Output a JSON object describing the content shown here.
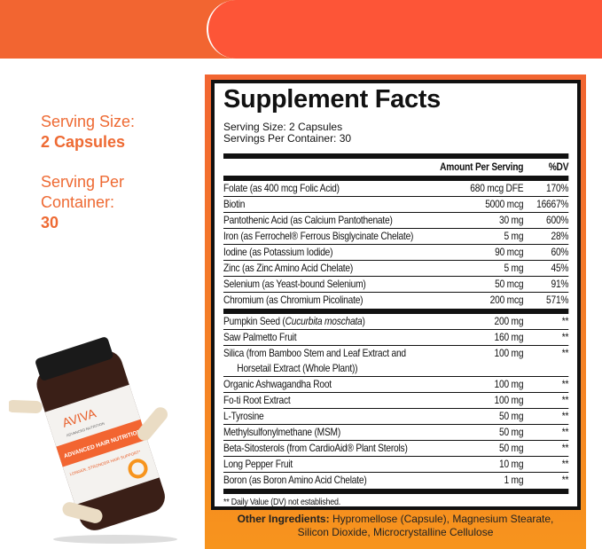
{
  "colors": {
    "left_band": "#f26531",
    "right_band": "#fd5537",
    "accent_text": "#ee6a33"
  },
  "left": {
    "serving_size_label": "Serving Size:",
    "serving_size_value": "2 Capsules",
    "servings_label_1": "Serving Per",
    "servings_label_2": "Container:",
    "servings_value": "30"
  },
  "facts": {
    "title": "Supplement Facts",
    "serving_size": "Serving Size: 2 Capsules",
    "servings_per_container": "Servings Per Container: 30",
    "header": {
      "amount": "Amount Per Serving",
      "dv": "%DV"
    },
    "vitamins": [
      {
        "name": "Folate (as 400 mcg Folic Acid)",
        "amount": "680 mcg DFE",
        "dv": "170%"
      },
      {
        "name": "Biotin",
        "amount": "5000 mcg",
        "dv": "16667%"
      },
      {
        "name": "Pantothenic Acid (as Calcium Pantothenate)",
        "amount": "30 mg",
        "dv": "600%"
      },
      {
        "name": "Iron (as Ferrochel® Ferrous Bisglycinate Chelate)",
        "amount": "5 mg",
        "dv": "28%"
      },
      {
        "name": "Iodine (as Potassium Iodide)",
        "amount": "90 mcg",
        "dv": "60%"
      },
      {
        "name": "Zinc (as Zinc Amino Acid Chelate)",
        "amount": "5 mg",
        "dv": "45%"
      },
      {
        "name": "Selenium (as Yeast-bound Selenium)",
        "amount": "50 mcg",
        "dv": "91%"
      },
      {
        "name": "Chromium (as Chromium Picolinate)",
        "amount": "200 mcg",
        "dv": "571%"
      }
    ],
    "others": [
      {
        "name": "Pumpkin Seed (",
        "name_italic": "Cucurbita moschata",
        "name_end": ")",
        "amount": "200 mg",
        "dv": "**"
      },
      {
        "name": "Saw Palmetto Fruit",
        "amount": "160 mg",
        "dv": "**"
      },
      {
        "name": "Silica (from Bamboo Stem and Leaf Extract and",
        "name_line2": "Horsetail Extract (Whole Plant))",
        "amount": "100 mg",
        "dv": "**"
      },
      {
        "name": "Organic Ashwagandha Root",
        "amount": "100 mg",
        "dv": "**"
      },
      {
        "name": "Fo-ti Root Extract",
        "amount": "100 mg",
        "dv": "**"
      },
      {
        "name": "L-Tyrosine",
        "amount": "50 mg",
        "dv": "**"
      },
      {
        "name": "Methylsulfonylmethane (MSM)",
        "amount": "50 mg",
        "dv": "**"
      },
      {
        "name": "Beta-Sitosterols (from CardioAid® Plant Sterols)",
        "amount": "50 mg",
        "dv": "**"
      },
      {
        "name": "Long Pepper Fruit",
        "amount": "10 mg",
        "dv": "**"
      },
      {
        "name": "Boron (as Boron Amino Acid Chelate)",
        "amount": "1 mg",
        "dv": "**"
      }
    ],
    "footnote": "** Daily Value (DV) not established.",
    "other_ingredients_label": "Other Ingredients:",
    "other_ingredients_1": " Hypromellose (Capsule), Magnesium Stearate,",
    "other_ingredients_2": "Silicon Dioxide, Microcrystalline Cellulose"
  },
  "bottle": {
    "brand": "AVIVA",
    "brand_sub": "ADVANCED NUTRITION",
    "product": "ADVANCED HAIR NUTRITION",
    "tagline": "LONGER, STRONGER HAIR SUPPORT*"
  }
}
